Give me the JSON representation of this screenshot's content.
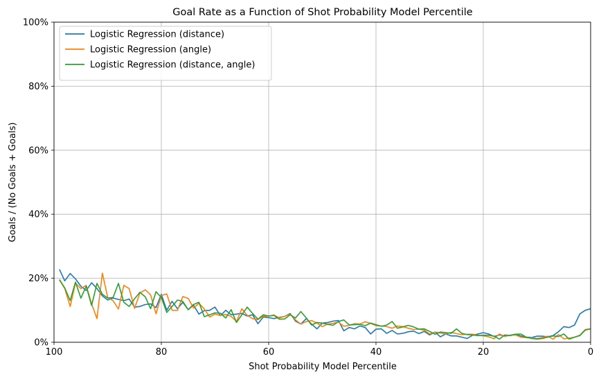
{
  "chart_data": {
    "type": "line",
    "title": "Goal Rate as a Function of Shot Probability Model Percentile",
    "xlabel": "Shot Probability Model Percentile",
    "ylabel": "Goals / (No Goals + Goals)",
    "xlim": [
      100,
      0
    ],
    "ylim": [
      0,
      100
    ],
    "x_ticks": [
      100,
      80,
      60,
      40,
      20,
      0
    ],
    "x_tick_labels": [
      "100",
      "80",
      "60",
      "40",
      "20",
      "0"
    ],
    "y_ticks": [
      0,
      20,
      40,
      60,
      80,
      100
    ],
    "y_tick_labels": [
      "0%",
      "20%",
      "40%",
      "60%",
      "80%",
      "100%"
    ],
    "grid": true,
    "legend_position": "top-left",
    "x": [
      99,
      98,
      97,
      96,
      95,
      94,
      93,
      92,
      91,
      90,
      89,
      88,
      87,
      86,
      85,
      84,
      83,
      82,
      81,
      80,
      79,
      78,
      77,
      76,
      75,
      74,
      73,
      72,
      71,
      70,
      69,
      68,
      67,
      66,
      65,
      64,
      63,
      62,
      61,
      60,
      59,
      58,
      57,
      56,
      55,
      54,
      53,
      52,
      51,
      50,
      49,
      48,
      47,
      46,
      45,
      44,
      43,
      42,
      41,
      40,
      39,
      38,
      37,
      36,
      35,
      34,
      33,
      32,
      31,
      30,
      29,
      28,
      27,
      26,
      25,
      24,
      23,
      22,
      21,
      20,
      19,
      18,
      17,
      16,
      15,
      14,
      13,
      12,
      11,
      10,
      9,
      8,
      7,
      6,
      5,
      4,
      3,
      2,
      1,
      0
    ],
    "series": [
      {
        "name": "Logistic Regression (distance)",
        "color": "#1f77b4",
        "values": [
          22.8,
          19.2,
          21.5,
          19.8,
          17.5,
          16.2,
          18.6,
          16.8,
          14.5,
          13.2,
          13.8,
          13.4,
          13.0,
          13.5,
          11.0,
          11.2,
          11.8,
          12.0,
          10.8,
          15.0,
          10.0,
          12.8,
          10.5,
          12.5,
          10.2,
          11.6,
          8.8,
          9.9,
          10.0,
          11.0,
          8.3,
          10.0,
          8.6,
          8.8,
          9.0,
          8.2,
          8.6,
          5.8,
          7.9,
          7.7,
          7.4,
          7.8,
          8.1,
          9.0,
          6.6,
          5.7,
          7.4,
          5.7,
          4.2,
          6.0,
          6.2,
          6.6,
          6.8,
          3.6,
          4.6,
          4.2,
          5.1,
          4.6,
          2.6,
          4.1,
          4.2,
          2.8,
          3.7,
          2.6,
          2.8,
          3.3,
          3.5,
          2.7,
          3.4,
          2.3,
          3.2,
          1.7,
          2.6,
          2.0,
          2.0,
          1.6,
          1.2,
          2.2,
          2.6,
          3.0,
          2.6,
          1.8,
          2.3,
          2.0,
          2.2,
          2.5,
          2.0,
          1.6,
          1.5,
          1.9,
          1.9,
          1.7,
          2.1,
          3.3,
          4.9,
          4.6,
          5.4,
          8.9,
          10.0,
          10.5
        ]
      },
      {
        "name": "Logistic Regression (angle)",
        "color": "#ff7f0e",
        "values": [
          19.5,
          16.8,
          11.2,
          18.5,
          16.8,
          17.8,
          12.0,
          7.4,
          21.6,
          14.0,
          13.0,
          10.4,
          17.8,
          16.8,
          10.6,
          15.4,
          16.4,
          14.8,
          8.9,
          14.6,
          15.1,
          10.0,
          10.0,
          14.3,
          13.7,
          10.7,
          12.2,
          10.4,
          7.9,
          8.8,
          8.4,
          8.7,
          8.1,
          6.5,
          10.5,
          8.4,
          7.4,
          7.1,
          8.2,
          8.2,
          8.5,
          7.6,
          8.1,
          8.8,
          7.0,
          5.7,
          6.5,
          6.8,
          6.0,
          4.9,
          5.7,
          5.9,
          6.3,
          5.0,
          5.3,
          5.8,
          5.7,
          6.4,
          5.9,
          5.2,
          5.1,
          4.9,
          4.4,
          5.1,
          4.9,
          4.4,
          4.0,
          4.1,
          3.8,
          2.6,
          3.2,
          2.9,
          2.6,
          3.1,
          2.7,
          2.4,
          2.5,
          2.5,
          2.2,
          2.0,
          1.7,
          1.1,
          2.6,
          1.8,
          2.2,
          2.3,
          1.6,
          1.4,
          1.4,
          1.2,
          1.5,
          1.9,
          1.0,
          2.4,
          1.1,
          1.3,
          1.6,
          2.2,
          4.0,
          4.2
        ]
      },
      {
        "name": "Logistic Regression (distance, angle)",
        "color": "#2ca02c",
        "values": [
          19.6,
          17.0,
          13.0,
          18.8,
          13.8,
          17.5,
          11.5,
          18.4,
          15.0,
          13.8,
          14.0,
          18.4,
          12.5,
          11.2,
          13.6,
          15.6,
          14.2,
          10.5,
          15.8,
          14.0,
          9.3,
          11.2,
          13.2,
          12.8,
          10.2,
          11.8,
          12.5,
          8.0,
          8.6,
          9.2,
          9.1,
          7.6,
          10.2,
          6.2,
          8.6,
          11.0,
          9.0,
          7.2,
          8.6,
          8.2,
          8.4,
          7.2,
          7.3,
          8.6,
          7.6,
          9.6,
          7.6,
          5.4,
          6.2,
          6.0,
          5.6,
          5.3,
          6.5,
          7.0,
          5.4,
          5.5,
          5.6,
          5.2,
          6.0,
          5.5,
          5.0,
          5.4,
          6.5,
          4.4,
          4.8,
          5.3,
          4.8,
          4.1,
          4.2,
          3.4,
          2.5,
          3.2,
          3.0,
          2.8,
          4.2,
          2.8,
          2.4,
          2.3,
          2.1,
          2.2,
          2.2,
          1.9,
          1.0,
          2.3,
          2.1,
          2.5,
          2.6,
          1.6,
          1.2,
          1.0,
          1.2,
          1.6,
          2.0,
          1.8,
          2.6,
          1.0,
          1.6,
          2.1,
          3.8,
          4.2
        ]
      }
    ]
  }
}
